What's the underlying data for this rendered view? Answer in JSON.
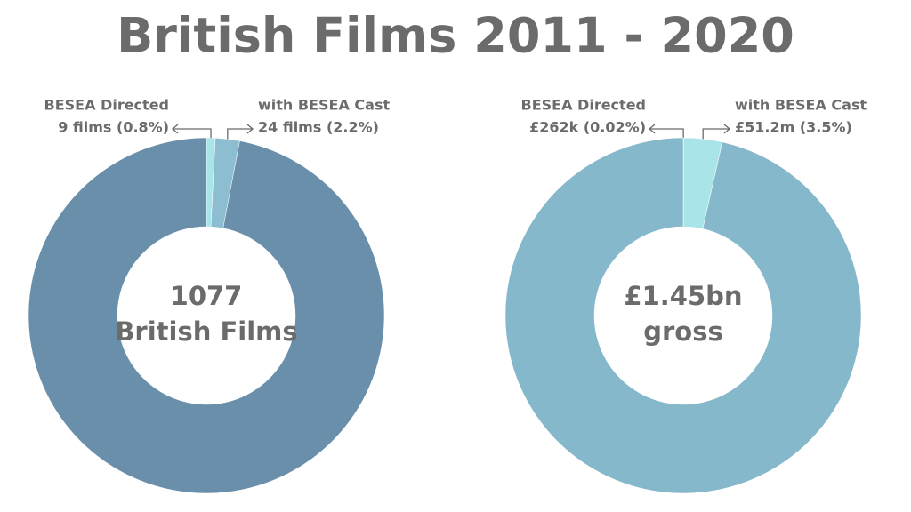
{
  "title": "British Films 2011 - 2020",
  "chart_data": [
    {
      "type": "donut",
      "categories": [
        "BESEA Directed",
        "with BESEA Cast",
        null
      ],
      "values": [
        0.8,
        2.2,
        97.0
      ],
      "value_labels": [
        "9 films (0.8%)",
        "24 films (2.2%)",
        null
      ],
      "colors": [
        "#a8e4e8",
        "#8dbdd0",
        "#6a8fab"
      ],
      "center_label": [
        "1077",
        "British Films"
      ]
    },
    {
      "type": "donut",
      "categories": [
        "BESEA Directed",
        "with BESEA Cast",
        null
      ],
      "values": [
        0.02,
        3.5,
        96.48
      ],
      "value_labels": [
        "£262k (0.02%)",
        "£51.2m (3.5%)",
        null
      ],
      "colors": [
        "#a8e4e8",
        "#a8e4e8",
        "#86b8cb"
      ],
      "center_label": [
        "£1.45bn",
        "gross"
      ]
    }
  ]
}
